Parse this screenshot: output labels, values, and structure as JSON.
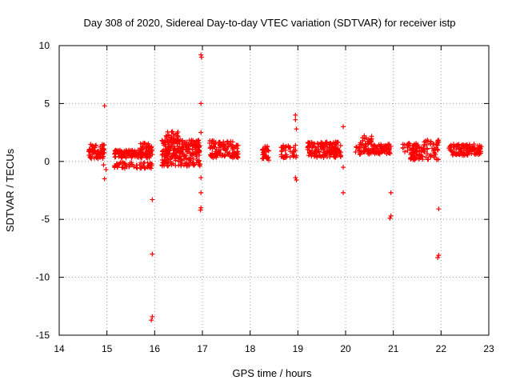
{
  "chart_data": {
    "type": "scatter",
    "title": "Day 308 of 2020, Sidereal Day-to-day VTEC variation (SDTVAR) for receiver istp",
    "xlabel": "GPS time / hours",
    "ylabel": "SDTVAR / TECUs",
    "xlim": [
      14,
      23
    ],
    "ylim": [
      -15,
      10
    ],
    "xticks": [
      14,
      15,
      16,
      17,
      18,
      19,
      20,
      21,
      22,
      23
    ],
    "yticks": [
      10,
      5,
      0,
      -5,
      -10,
      -15
    ],
    "xtick_labels": [
      "14",
      "15",
      "16",
      "17",
      "18",
      "19",
      "20",
      "21",
      "22",
      "23"
    ],
    "ytick_labels": [
      "10",
      "5",
      "0",
      "-5",
      "-10",
      "-15"
    ],
    "grid": true,
    "marker": "+",
    "color": "#ff0000",
    "clusters": [
      {
        "x0": 14.62,
        "x1": 14.95,
        "y0": 0.2,
        "y1": 1.5,
        "n": 70
      },
      {
        "x0": 15.15,
        "x1": 15.95,
        "y0": 0.3,
        "y1": 1.0,
        "n": 120
      },
      {
        "x0": 15.15,
        "x1": 15.95,
        "y0": -0.6,
        "y1": -0.1,
        "n": 60
      },
      {
        "x0": 15.7,
        "x1": 15.95,
        "y0": 0.9,
        "y1": 1.6,
        "n": 25
      },
      {
        "x0": 16.15,
        "x1": 16.95,
        "y0": -0.4,
        "y1": 1.9,
        "n": 260
      },
      {
        "x0": 16.2,
        "x1": 16.5,
        "y0": 1.8,
        "y1": 2.6,
        "n": 25
      },
      {
        "x0": 17.15,
        "x1": 17.75,
        "y0": 0.3,
        "y1": 1.8,
        "n": 120
      },
      {
        "x0": 18.25,
        "x1": 18.4,
        "y0": 0.0,
        "y1": 1.4,
        "n": 30
      },
      {
        "x0": 18.65,
        "x1": 18.97,
        "y0": 0.3,
        "y1": 1.4,
        "n": 40
      },
      {
        "x0": 19.2,
        "x1": 19.9,
        "y0": 0.3,
        "y1": 1.7,
        "n": 150
      },
      {
        "x0": 20.2,
        "x1": 20.95,
        "y0": 0.6,
        "y1": 1.5,
        "n": 110
      },
      {
        "x0": 20.3,
        "x1": 20.55,
        "y0": 1.5,
        "y1": 2.3,
        "n": 20
      },
      {
        "x0": 21.2,
        "x1": 21.6,
        "y0": 0.8,
        "y1": 1.6,
        "n": 40
      },
      {
        "x0": 21.35,
        "x1": 21.95,
        "y0": 0.1,
        "y1": 1.2,
        "n": 70
      },
      {
        "x0": 21.6,
        "x1": 21.95,
        "y0": 1.4,
        "y1": 1.9,
        "n": 20
      },
      {
        "x0": 22.15,
        "x1": 22.85,
        "y0": 0.5,
        "y1": 1.5,
        "n": 110
      }
    ],
    "points": [
      [
        14.95,
        4.8
      ],
      [
        14.95,
        -1.5
      ],
      [
        14.98,
        -0.7
      ],
      [
        14.93,
        -0.3
      ],
      [
        15.95,
        -3.3
      ],
      [
        15.95,
        -8.0
      ],
      [
        15.95,
        -13.4
      ],
      [
        15.93,
        -13.7
      ],
      [
        16.97,
        9.2
      ],
      [
        16.98,
        9.0
      ],
      [
        16.97,
        5.0
      ],
      [
        16.97,
        2.5
      ],
      [
        16.97,
        -1.4
      ],
      [
        16.97,
        -2.7
      ],
      [
        16.97,
        -4.0
      ],
      [
        16.96,
        -4.2
      ],
      [
        18.95,
        4.0
      ],
      [
        18.95,
        3.6
      ],
      [
        18.97,
        2.8
      ],
      [
        18.95,
        -1.4
      ],
      [
        18.97,
        -1.6
      ],
      [
        19.95,
        3.0
      ],
      [
        19.95,
        -0.5
      ],
      [
        19.95,
        -2.7
      ],
      [
        20.95,
        -2.7
      ],
      [
        20.95,
        -4.7
      ],
      [
        20.93,
        -4.9
      ],
      [
        21.95,
        -4.1
      ],
      [
        21.95,
        -8.1
      ],
      [
        21.93,
        -8.3
      ]
    ]
  }
}
